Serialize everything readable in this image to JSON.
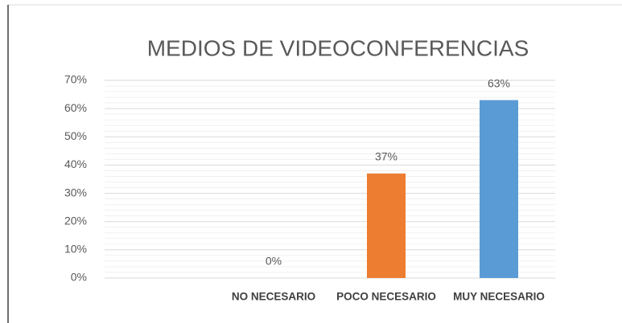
{
  "chart_data": {
    "type": "bar",
    "title": "MEDIOS DE VIDEOCONFERENCIAS",
    "categories": [
      null,
      "NO NECESARIO",
      "POCO NECESARIO",
      "MUY NECESARIO"
    ],
    "values": [
      null,
      0,
      37,
      63
    ],
    "value_labels": [
      null,
      "0%",
      "37%",
      "63%"
    ],
    "colors": [
      null,
      null,
      "#ed7d31",
      "#5b9bd5"
    ],
    "ylim": [
      0,
      70
    ],
    "yticks": [
      {
        "value": 0,
        "label": "0%"
      },
      {
        "value": 10,
        "label": "10%"
      },
      {
        "value": 20,
        "label": "20%"
      },
      {
        "value": 30,
        "label": "30%"
      },
      {
        "value": 40,
        "label": "40%"
      },
      {
        "value": 50,
        "label": "50%"
      },
      {
        "value": 60,
        "label": "60%"
      },
      {
        "value": 70,
        "label": "70%"
      }
    ],
    "grid": true
  }
}
